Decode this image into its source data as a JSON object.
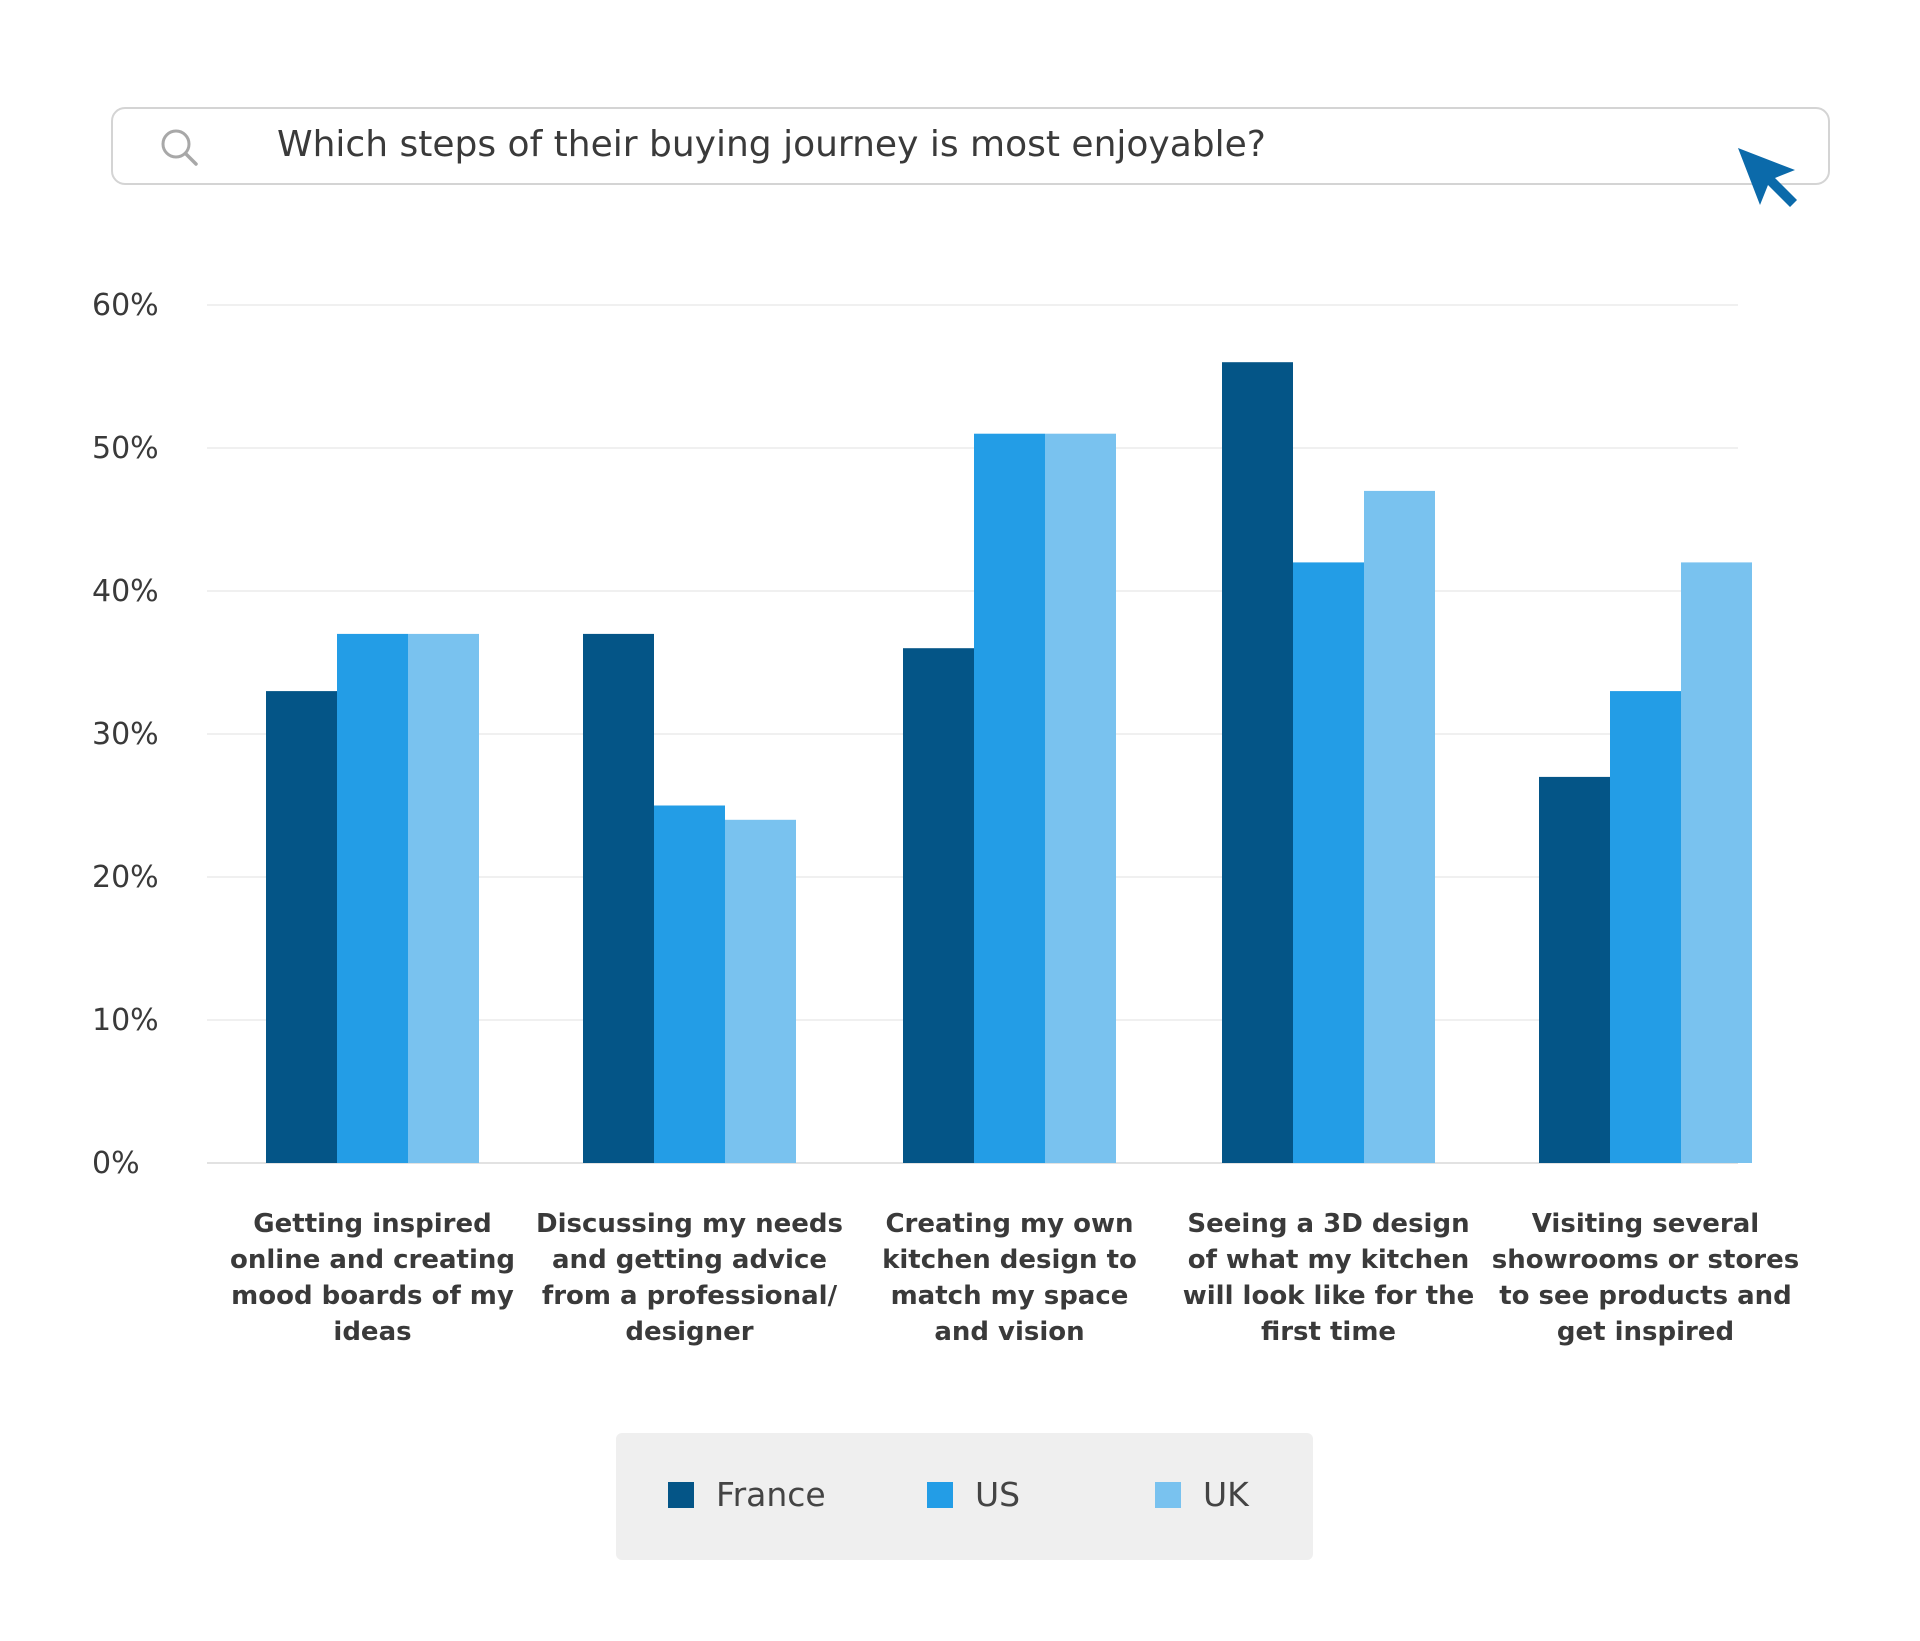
{
  "search": {
    "query": "Which steps of their buying journey is most enjoyable?"
  },
  "chart_data": {
    "type": "bar",
    "title": "",
    "xlabel": "",
    "ylabel": "",
    "ylim": [
      0,
      60
    ],
    "y_ticks": [
      "0%",
      "10%",
      "20%",
      "30%",
      "40%",
      "50%",
      "60%"
    ],
    "grid": true,
    "legend_position": "bottom",
    "categories": [
      "Getting inspired online and creating mood boards of my ideas",
      "Discussing my needs and getting advice from a professional/ designer",
      "Creating my own kitchen design to match my space and vision",
      "Seeing a 3D design of what my kitchen will look like for the first time",
      "Visiting several showrooms or stores to see products and get inspired"
    ],
    "category_lines": [
      [
        "Getting inspired",
        "online and creating",
        "mood boards of my",
        "ideas"
      ],
      [
        "Discussing my needs",
        "and getting advice",
        "from a professional/",
        "designer"
      ],
      [
        "Creating my own",
        "kitchen design to",
        "match my space",
        "and vision"
      ],
      [
        "Seeing a 3D design",
        "of what my kitchen",
        "will look like for the",
        "first time"
      ],
      [
        "Visiting several",
        "showrooms or stores",
        "to see products and",
        "get inspired"
      ]
    ],
    "series": [
      {
        "name": "France",
        "color": "#045587",
        "values": [
          33,
          37,
          36,
          56,
          27
        ]
      },
      {
        "name": "US",
        "color": "#239de6",
        "values": [
          37,
          25,
          51,
          42,
          33
        ]
      },
      {
        "name": "UK",
        "color": "#79c2ef",
        "values": [
          37,
          24,
          51,
          47,
          42
        ]
      }
    ]
  }
}
